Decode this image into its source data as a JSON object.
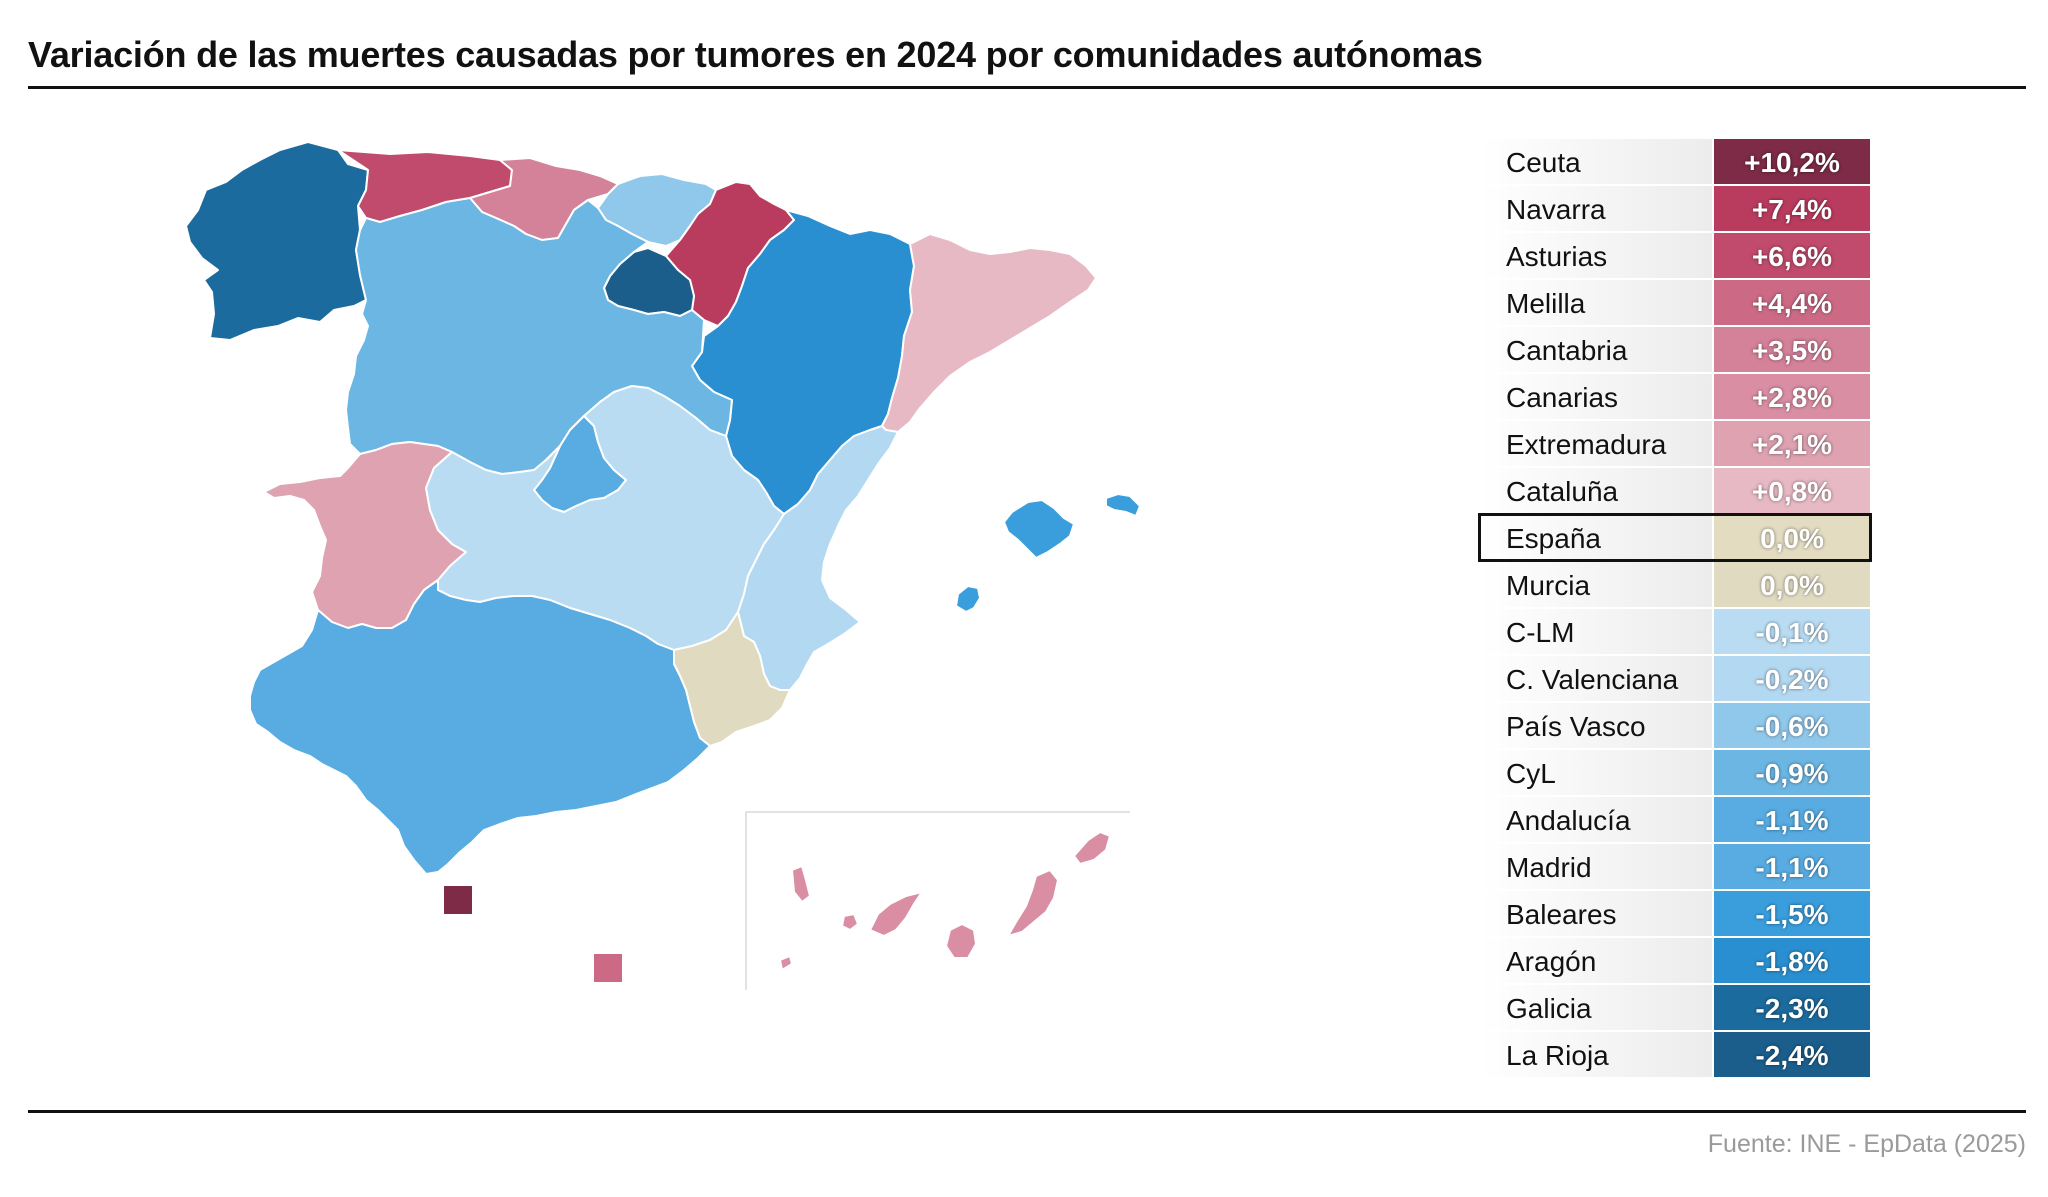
{
  "title": "Variación de las muertes causadas por tumores en 2024 por comunidades autónomas",
  "source": "Fuente: INE - EpData (2025)",
  "colors": {
    "ceuta": "#7d2b47",
    "navarra": "#b93b5e",
    "asturias": "#c04b6c",
    "melilla": "#cc6a86",
    "cantabria": "#d4819a",
    "canarias": "#d98ea4",
    "extremadura": "#dea2b1",
    "cataluna": "#e7b9c5",
    "espana": "#e3dcc1",
    "murcia": "#e0dac0",
    "clm": "#b9dcf2",
    "valenciana": "#b3d8f1",
    "paisvasco": "#90c8ec",
    "cyl": "#6cb6e3",
    "andalucia": "#58ace2",
    "madrid": "#58ace2",
    "baleares": "#3a9edd",
    "aragon": "#2a8fd0",
    "galicia": "#1c6b9e",
    "larioja": "#1b5e8c"
  },
  "table": [
    {
      "name": "Ceuta",
      "value": "+10,2%",
      "color": "#7d2b47"
    },
    {
      "name": "Navarra",
      "value": "+7,4%",
      "color": "#b93b5e"
    },
    {
      "name": "Asturias",
      "value": "+6,6%",
      "color": "#c04b6c"
    },
    {
      "name": "Melilla",
      "value": "+4,4%",
      "color": "#cc6a86"
    },
    {
      "name": "Cantabria",
      "value": "+3,5%",
      "color": "#d4819a"
    },
    {
      "name": "Canarias",
      "value": "+2,8%",
      "color": "#d98ea4"
    },
    {
      "name": "Extremadura",
      "value": "+2,1%",
      "color": "#dea2b1"
    },
    {
      "name": "Cataluña",
      "value": "+0,8%",
      "color": "#e7b9c5"
    },
    {
      "name": "España",
      "value": "0,0%",
      "color": "#e3dcc1",
      "highlight": true
    },
    {
      "name": "Murcia",
      "value": "0,0%",
      "color": "#e0dac0"
    },
    {
      "name": "C-LM",
      "value": "-0,1%",
      "color": "#b9dcf2"
    },
    {
      "name": "C. Valenciana",
      "value": "-0,2%",
      "color": "#b3d8f1"
    },
    {
      "name": "País Vasco",
      "value": "-0,6%",
      "color": "#90c8ec"
    },
    {
      "name": "CyL",
      "value": "-0,9%",
      "color": "#6cb6e3"
    },
    {
      "name": "Andalucía",
      "value": "-1,1%",
      "color": "#58ace2"
    },
    {
      "name": "Madrid",
      "value": "-1,1%",
      "color": "#58ace2"
    },
    {
      "name": "Baleares",
      "value": "-1,5%",
      "color": "#3a9edd"
    },
    {
      "name": "Aragón",
      "value": "-1,8%",
      "color": "#2a8fd0"
    },
    {
      "name": "Galicia",
      "value": "-2,3%",
      "color": "#1c6b9e"
    },
    {
      "name": "La Rioja",
      "value": "-2,4%",
      "color": "#1b5e8c"
    }
  ]
}
